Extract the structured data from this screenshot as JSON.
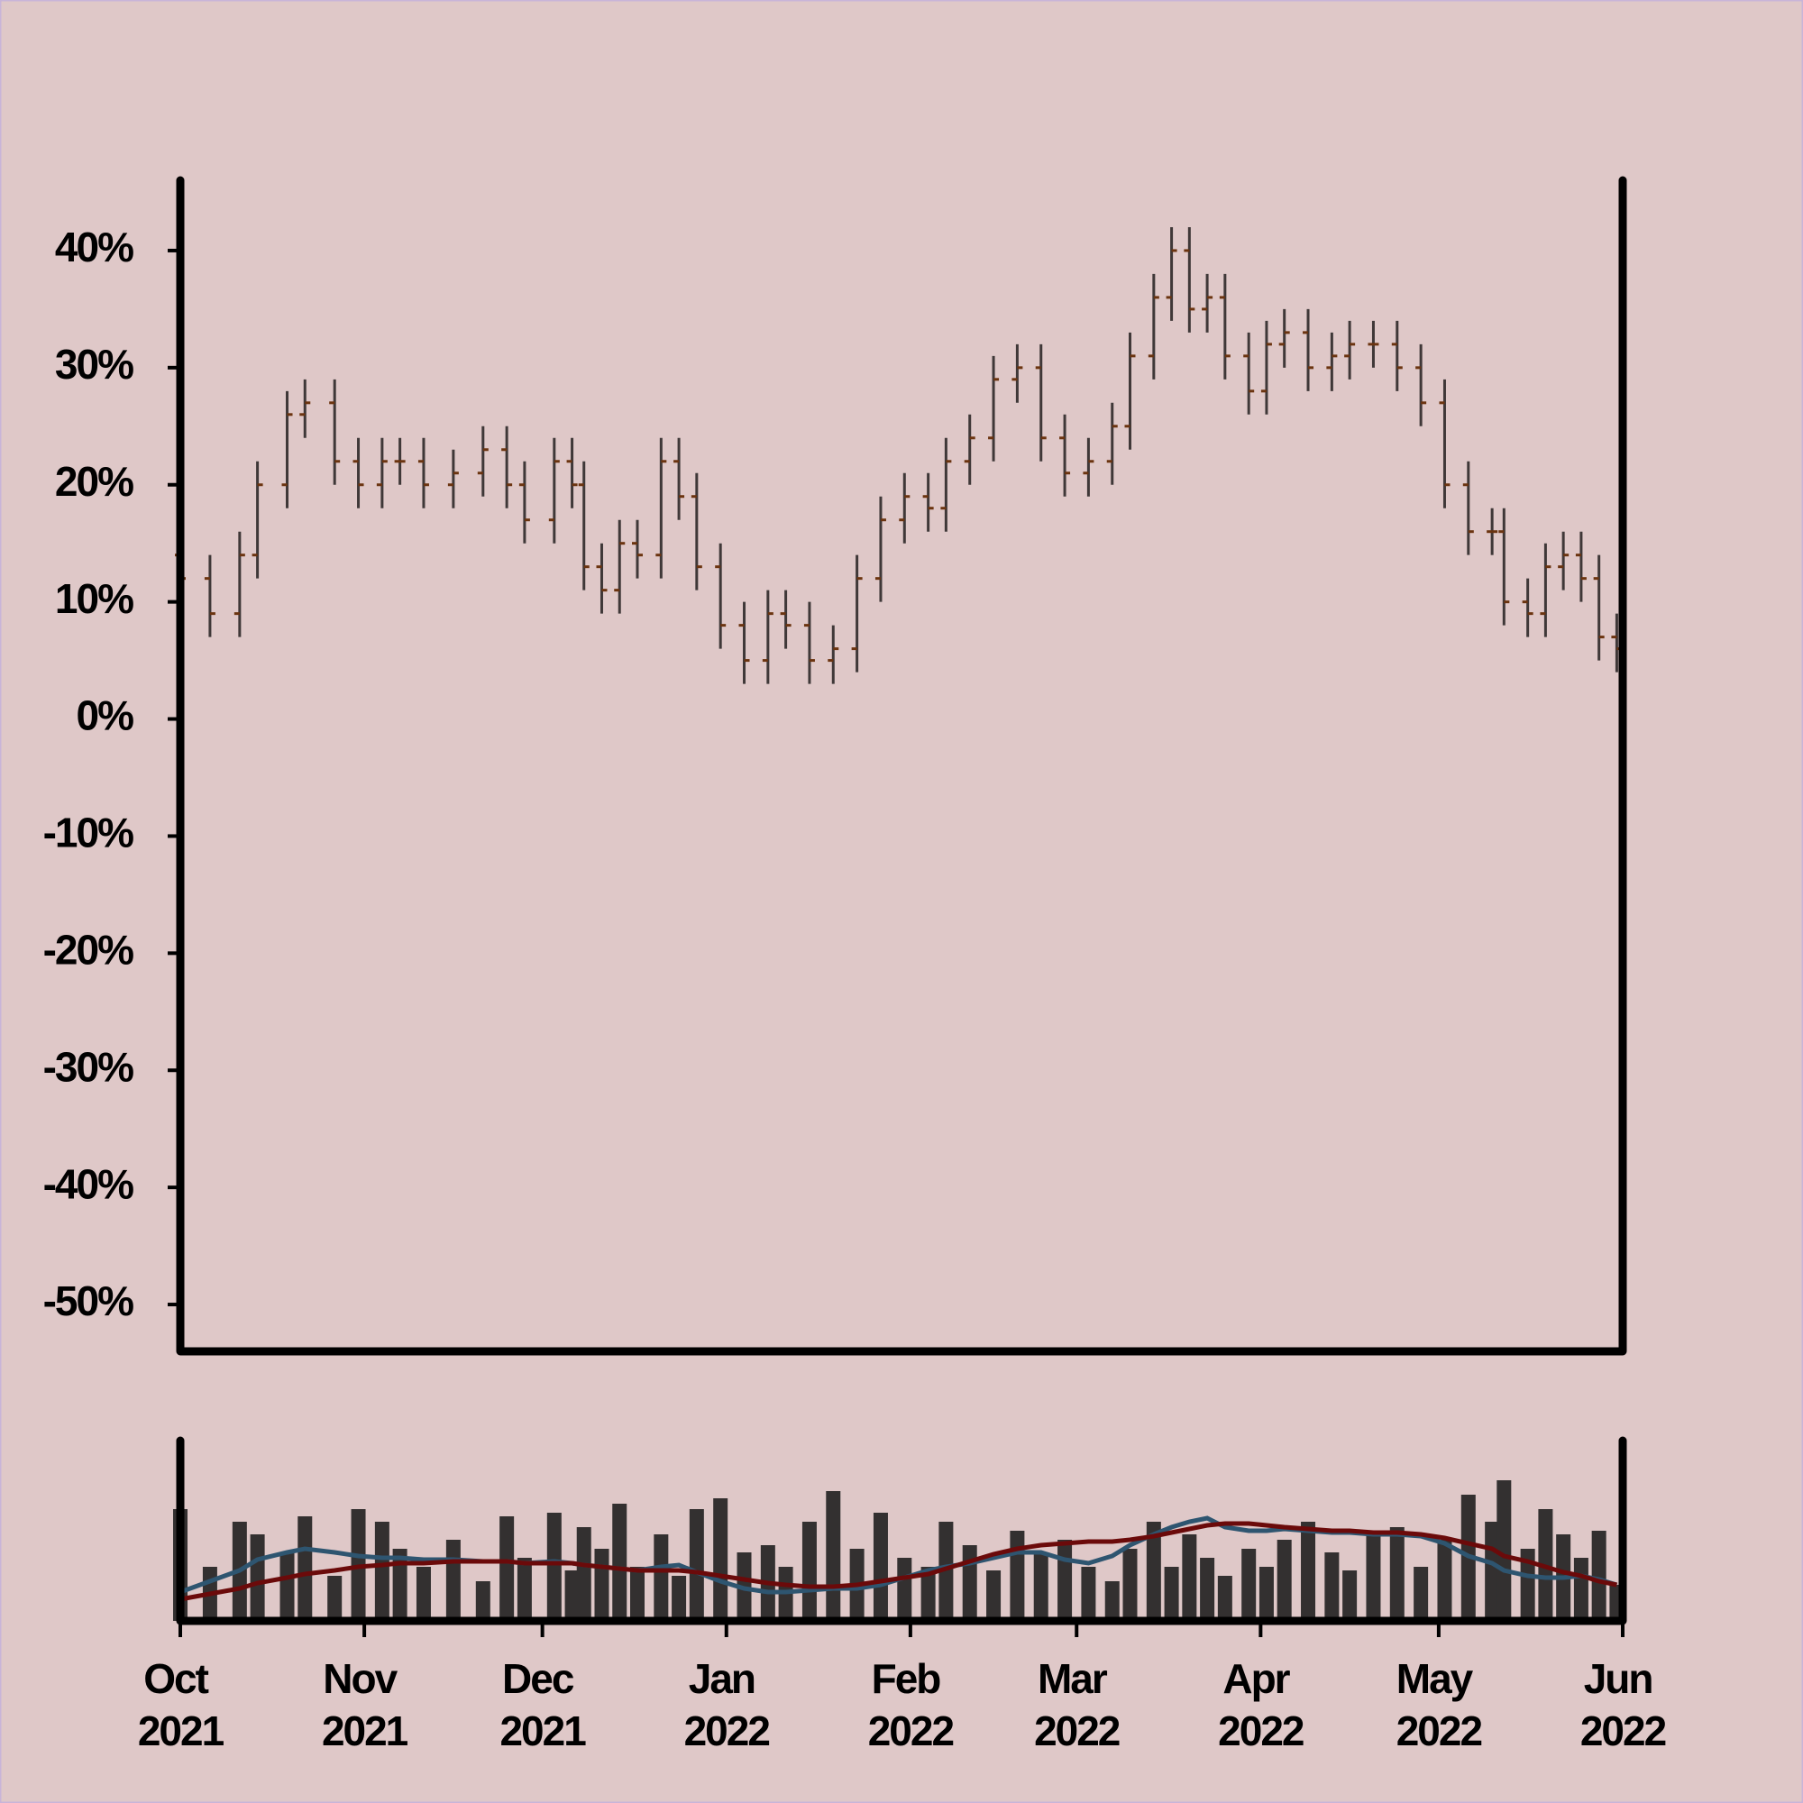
{
  "chart_data": [
    {
      "type": "ohlc",
      "x": [
        0,
        5,
        10,
        13,
        18,
        21,
        26,
        30,
        34,
        37,
        41,
        46,
        51,
        55,
        58,
        63,
        66,
        68,
        71,
        74,
        77,
        81,
        84,
        87,
        91,
        95,
        99,
        102,
        106,
        110,
        114,
        118,
        122,
        126,
        129,
        133,
        137,
        141,
        145,
        149,
        153,
        157,
        160,
        164,
        167,
        170,
        173,
        176,
        180,
        183,
        186,
        190,
        194,
        197,
        201,
        205,
        209,
        213,
        217,
        221,
        223,
        227,
        230,
        233,
        236,
        239,
        242
      ],
      "open": [
        14,
        12,
        9,
        14,
        20,
        26,
        27,
        22,
        20,
        22,
        22,
        20,
        21,
        23,
        20,
        17,
        22,
        20,
        13,
        11,
        15,
        14,
        22,
        19,
        13,
        8,
        5,
        9,
        8,
        5,
        6,
        12,
        17,
        19,
        18,
        22,
        24,
        29,
        30,
        24,
        21,
        22,
        25,
        31,
        36,
        40,
        35,
        36,
        31,
        28,
        32,
        33,
        30,
        31,
        32,
        32,
        30,
        27,
        20,
        16,
        16,
        10,
        9,
        13,
        14,
        12,
        7
      ],
      "high": [
        16,
        14,
        16,
        22,
        28,
        29,
        29,
        24,
        24,
        24,
        24,
        23,
        25,
        25,
        22,
        24,
        24,
        22,
        15,
        17,
        17,
        24,
        24,
        21,
        15,
        10,
        11,
        11,
        10,
        8,
        14,
        19,
        21,
        21,
        24,
        26,
        31,
        32,
        32,
        26,
        24,
        27,
        33,
        38,
        42,
        42,
        38,
        38,
        33,
        34,
        35,
        35,
        33,
        34,
        34,
        34,
        32,
        29,
        22,
        18,
        18,
        12,
        15,
        16,
        16,
        14,
        9
      ],
      "low": [
        10,
        7,
        7,
        12,
        18,
        24,
        20,
        18,
        18,
        20,
        18,
        18,
        19,
        18,
        15,
        15,
        18,
        11,
        9,
        9,
        12,
        12,
        17,
        11,
        6,
        3,
        3,
        6,
        3,
        3,
        4,
        10,
        15,
        16,
        16,
        20,
        22,
        27,
        22,
        19,
        19,
        20,
        23,
        29,
        34,
        33,
        33,
        29,
        26,
        26,
        30,
        28,
        28,
        29,
        30,
        28,
        25,
        18,
        14,
        14,
        8,
        7,
        7,
        11,
        10,
        5,
        4
      ],
      "close": [
        12,
        9,
        14,
        20,
        26,
        27,
        22,
        20,
        22,
        22,
        20,
        21,
        23,
        20,
        17,
        22,
        20,
        13,
        11,
        15,
        14,
        22,
        19,
        13,
        8,
        5,
        9,
        8,
        5,
        6,
        12,
        17,
        19,
        18,
        22,
        24,
        29,
        30,
        24,
        21,
        22,
        25,
        31,
        36,
        40,
        35,
        36,
        31,
        28,
        32,
        33,
        30,
        31,
        32,
        32,
        30,
        27,
        20,
        16,
        16,
        10,
        9,
        13,
        14,
        12,
        7,
        6
      ],
      "color": "#3f3838",
      "tick_color": "#6b3410",
      "xlim": [
        0,
        243
      ],
      "ylim": [
        -54,
        46
      ],
      "yticks": [
        {
          "value": 40,
          "label": "40%"
        },
        {
          "value": 30,
          "label": "30%"
        },
        {
          "value": 20,
          "label": "20%"
        },
        {
          "value": 10,
          "label": "10%"
        },
        {
          "value": 0,
          "label": "0%"
        },
        {
          "value": -10,
          "label": "-10%"
        },
        {
          "value": -20,
          "label": "-20%"
        },
        {
          "value": -30,
          "label": "-30%"
        },
        {
          "value": -40,
          "label": "-40%"
        },
        {
          "value": -50,
          "label": "-50%"
        }
      ]
    },
    {
      "type": "volume",
      "x": [
        0,
        5,
        10,
        13,
        18,
        21,
        26,
        30,
        34,
        37,
        41,
        46,
        51,
        55,
        58,
        63,
        66,
        68,
        71,
        74,
        77,
        81,
        84,
        87,
        91,
        95,
        99,
        102,
        106,
        110,
        114,
        118,
        122,
        126,
        129,
        133,
        137,
        141,
        145,
        149,
        153,
        157,
        160,
        164,
        167,
        170,
        173,
        176,
        180,
        183,
        186,
        190,
        194,
        197,
        201,
        205,
        209,
        213,
        217,
        221,
        223,
        227,
        230,
        233,
        236,
        239,
        242
      ],
      "values": [
        62,
        30,
        55,
        48,
        38,
        58,
        25,
        62,
        55,
        40,
        30,
        45,
        22,
        58,
        35,
        60,
        28,
        52,
        40,
        65,
        30,
        48,
        25,
        62,
        68,
        38,
        42,
        30,
        55,
        72,
        40,
        60,
        35,
        30,
        55,
        42,
        28,
        50,
        38,
        45,
        30,
        22,
        40,
        55,
        30,
        48,
        35,
        25,
        40,
        30,
        45,
        55,
        38,
        28,
        48,
        52,
        30,
        45,
        70,
        55,
        78,
        40,
        62,
        48,
        35,
        50,
        20
      ],
      "color": "#333030",
      "series": [
        {
          "color": "#2e5570",
          "values": [
            16,
            22,
            28,
            34,
            38,
            40,
            38,
            36,
            35,
            35,
            34,
            34,
            33,
            33,
            32,
            33,
            32,
            31,
            30,
            29,
            28,
            30,
            31,
            27,
            22,
            18,
            16,
            16,
            17,
            18,
            18,
            20,
            24,
            28,
            30,
            32,
            35,
            38,
            38,
            34,
            32,
            36,
            42,
            48,
            52,
            55,
            57,
            52,
            50,
            50,
            51,
            50,
            49,
            49,
            48,
            48,
            47,
            43,
            36,
            32,
            28,
            25,
            24,
            24,
            25,
            23,
            20
          ]
        },
        {
          "color": "#6b0a0a",
          "values": [
            12,
            15,
            18,
            21,
            24,
            26,
            28,
            30,
            31,
            32,
            32,
            33,
            33,
            33,
            32,
            32,
            32,
            31,
            30,
            29,
            28,
            28,
            28,
            27,
            25,
            23,
            21,
            20,
            19,
            19,
            20,
            22,
            24,
            26,
            29,
            33,
            37,
            40,
            42,
            43,
            44,
            44,
            45,
            47,
            49,
            51,
            53,
            54,
            54,
            53,
            52,
            51,
            50,
            50,
            49,
            49,
            48,
            46,
            43,
            40,
            36,
            33,
            30,
            27,
            25,
            22,
            20
          ]
        }
      ],
      "xlim": [
        0,
        243
      ],
      "ylim": [
        0,
        100
      ],
      "xticks": [
        {
          "value": 0,
          "label": "Oct 2021"
        },
        {
          "value": 31,
          "label": "Nov 2021"
        },
        {
          "value": 61,
          "label": "Dec 2021"
        },
        {
          "value": 92,
          "label": "Jan 2022"
        },
        {
          "value": 123,
          "label": "Feb 2022"
        },
        {
          "value": 151,
          "label": "Mar 2022"
        },
        {
          "value": 182,
          "label": "Apr 2022"
        },
        {
          "value": 212,
          "label": "May 2022"
        },
        {
          "value": 243,
          "label": "Jun 2022"
        }
      ]
    }
  ]
}
